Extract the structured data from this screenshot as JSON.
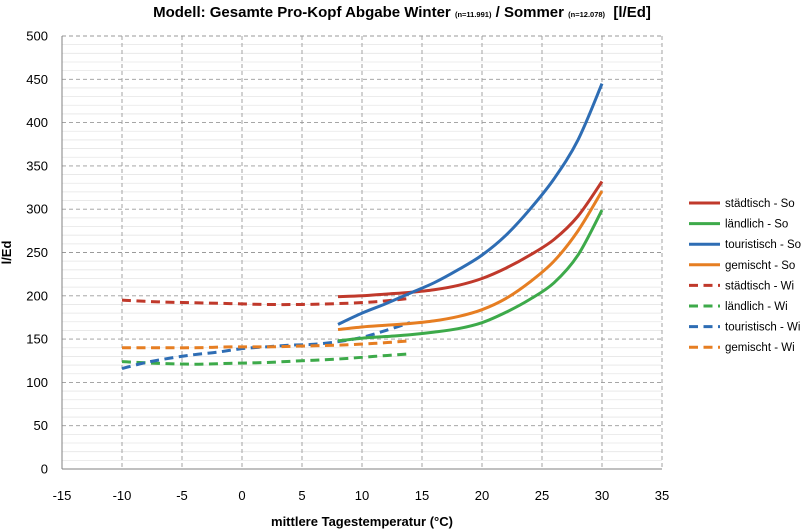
{
  "chart_data": {
    "type": "line",
    "title": {
      "parts": [
        {
          "text": "Modell: Gesamte Pro-Kopf Abgabe Winter ",
          "small": false
        },
        {
          "text": "(n=11.991)",
          "small": true
        },
        {
          "text": " / Sommer ",
          "small": false
        },
        {
          "text": "(n=12.078)",
          "small": true
        },
        {
          "text": "  [l/Ed]",
          "small": false
        }
      ]
    },
    "xlabel": "mittlere Tagestemperatur (°C)",
    "ylabel": "l/Ed",
    "xlim": [
      -15,
      35
    ],
    "ylim": [
      0,
      500
    ],
    "xticks": [
      -15,
      -10,
      -5,
      0,
      5,
      10,
      15,
      20,
      25,
      30,
      35
    ],
    "yticks": [
      0,
      50,
      100,
      150,
      200,
      250,
      300,
      350,
      400,
      450,
      500
    ],
    "grid": true,
    "legend_position": "right",
    "series": [
      {
        "name": "städtisch - So",
        "color": "#C0392B",
        "dash": "solid",
        "points": [
          [
            8,
            199
          ],
          [
            10,
            200
          ],
          [
            12,
            202
          ],
          [
            14,
            204
          ],
          [
            16,
            207
          ],
          [
            18,
            212
          ],
          [
            20,
            220
          ],
          [
            22,
            232
          ],
          [
            24,
            247
          ],
          [
            26,
            265
          ],
          [
            28,
            292
          ],
          [
            30,
            332
          ]
        ]
      },
      {
        "name": "ländlich - So",
        "color": "#3DAA4A",
        "dash": "solid",
        "points": [
          [
            8,
            148
          ],
          [
            10,
            151
          ],
          [
            12,
            153
          ],
          [
            14,
            155
          ],
          [
            16,
            158
          ],
          [
            18,
            162
          ],
          [
            20,
            169
          ],
          [
            22,
            181
          ],
          [
            24,
            196
          ],
          [
            26,
            215
          ],
          [
            28,
            247
          ],
          [
            30,
            299
          ]
        ]
      },
      {
        "name": "touristisch - So",
        "color": "#2E6DB4",
        "dash": "solid",
        "points": [
          [
            8,
            167
          ],
          [
            10,
            180
          ],
          [
            12,
            191
          ],
          [
            14,
            203
          ],
          [
            16,
            215
          ],
          [
            18,
            230
          ],
          [
            20,
            247
          ],
          [
            22,
            270
          ],
          [
            24,
            300
          ],
          [
            26,
            335
          ],
          [
            28,
            380
          ],
          [
            30,
            445
          ]
        ]
      },
      {
        "name": "gemischt - So",
        "color": "#E67E22",
        "dash": "solid",
        "points": [
          [
            8,
            161
          ],
          [
            10,
            164
          ],
          [
            12,
            166
          ],
          [
            14,
            168
          ],
          [
            16,
            171
          ],
          [
            18,
            176
          ],
          [
            20,
            184
          ],
          [
            22,
            197
          ],
          [
            24,
            216
          ],
          [
            26,
            240
          ],
          [
            28,
            275
          ],
          [
            30,
            321
          ]
        ]
      },
      {
        "name": "städtisch - Wi",
        "color": "#C0392B",
        "dash": "dashed",
        "points": [
          [
            -10,
            195
          ],
          [
            -7,
            193
          ],
          [
            -4,
            192
          ],
          [
            -1,
            191
          ],
          [
            2,
            190
          ],
          [
            5,
            190
          ],
          [
            8,
            191
          ],
          [
            11,
            193
          ],
          [
            14,
            197
          ]
        ]
      },
      {
        "name": "ländlich - Wi",
        "color": "#3DAA4A",
        "dash": "dashed",
        "points": [
          [
            -10,
            124
          ],
          [
            -7,
            122
          ],
          [
            -4,
            121
          ],
          [
            -1,
            122
          ],
          [
            2,
            123
          ],
          [
            5,
            125
          ],
          [
            8,
            127
          ],
          [
            11,
            130
          ],
          [
            14,
            133
          ]
        ]
      },
      {
        "name": "touristisch - Wi",
        "color": "#2E6DB4",
        "dash": "dashed",
        "points": [
          [
            -10,
            116
          ],
          [
            -8,
            123
          ],
          [
            -6,
            128
          ],
          [
            -4,
            132
          ],
          [
            -2,
            135
          ],
          [
            0,
            139
          ],
          [
            2,
            141
          ],
          [
            4,
            143
          ],
          [
            6,
            144
          ],
          [
            8,
            147
          ],
          [
            10,
            152
          ],
          [
            12,
            160
          ],
          [
            14,
            169
          ]
        ]
      },
      {
        "name": "gemischt - Wi",
        "color": "#E67E22",
        "dash": "dashed",
        "points": [
          [
            -10,
            140
          ],
          [
            -7,
            140
          ],
          [
            -4,
            140
          ],
          [
            -1,
            141
          ],
          [
            2,
            141
          ],
          [
            5,
            142
          ],
          [
            8,
            143
          ],
          [
            11,
            145
          ],
          [
            14,
            148
          ]
        ]
      }
    ]
  }
}
